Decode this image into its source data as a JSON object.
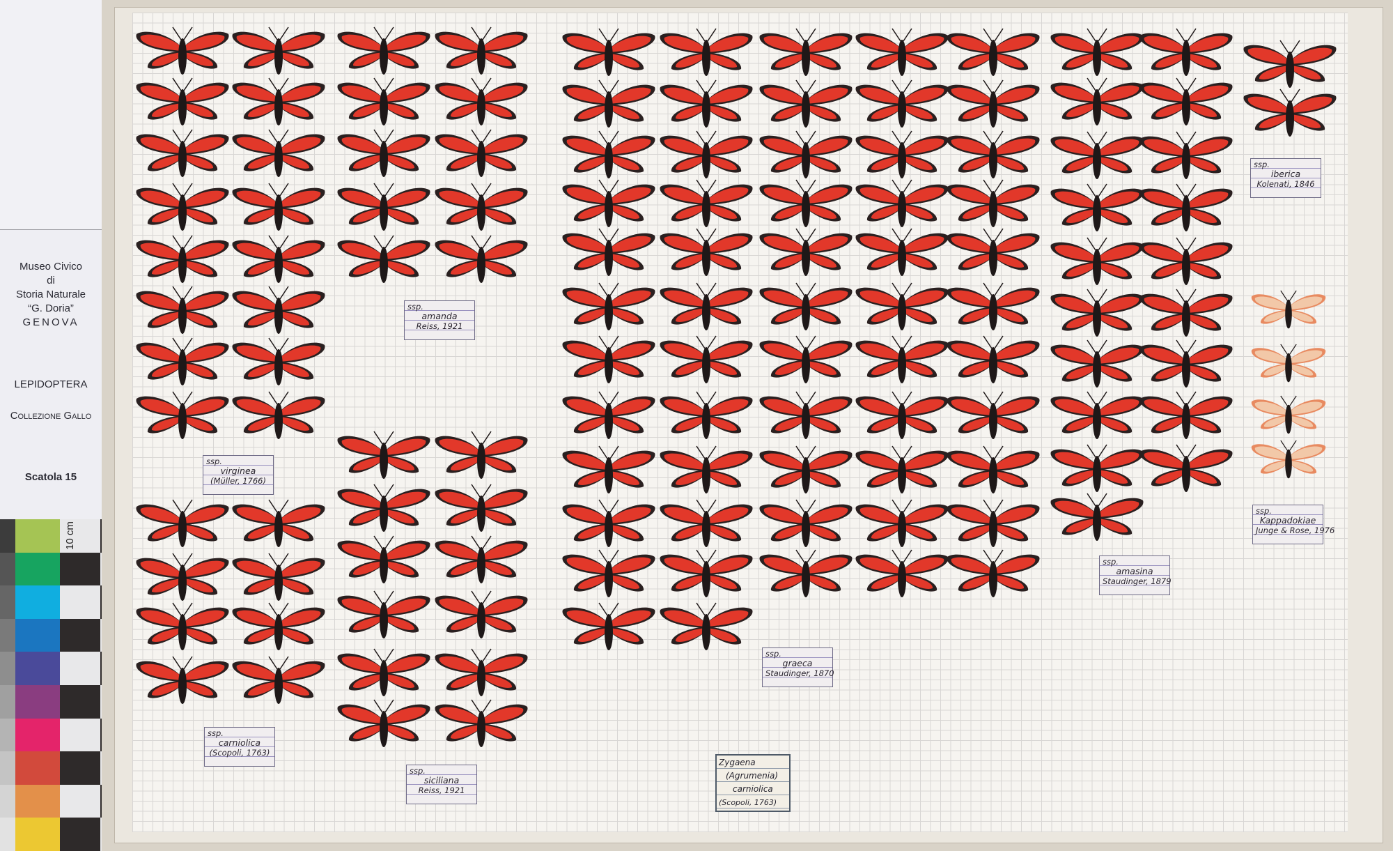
{
  "side_panel": {
    "museum": [
      "Museo Civico",
      "di",
      "Storia Naturale",
      "“G. Doria”",
      "GENOVA"
    ],
    "order": "LEPIDOPTERA",
    "collection": "Collezione Gallo",
    "box": "Scatola 15"
  },
  "color_chart": {
    "scale_label": "10 cm",
    "colors": [
      "#a5c454",
      "#17a460",
      "#10aee0",
      "#1b76c0",
      "#4a4a9a",
      "#8a3d80",
      "#e4246a",
      "#d24a3c",
      "#e3904a",
      "#ecc832"
    ],
    "grays": [
      "#3c3c3c",
      "#555555",
      "#666666",
      "#7a7a7a",
      "#8e8e8e",
      "#a0a0a0",
      "#b4b4b4",
      "#c4c4c4",
      "#d4d4d4",
      "#e2e2e2"
    ]
  },
  "genus_label": [
    "Zygaena",
    "(Agrumenia)",
    "carniolica",
    "(Scopoli, 1763)"
  ],
  "subspecies_labels": [
    {
      "prefix": "ssp.",
      "name": "amanda",
      "author": "Reiss, 1921"
    },
    {
      "prefix": "ssp.",
      "name": "virginea",
      "author": "(Müller, 1766)"
    },
    {
      "prefix": "ssp.",
      "name": "carniolica",
      "author": "(Scopoli, 1763)"
    },
    {
      "prefix": "ssp.",
      "name": "siciliana",
      "author": "Reiss, 1921"
    },
    {
      "prefix": "ssp.",
      "name": "graeca",
      "author": "Staudinger, 1870"
    },
    {
      "prefix": "ssp.",
      "name": "amasina",
      "author": "Staudinger, 1879"
    },
    {
      "prefix": "ssp.",
      "name": "iberica",
      "author": "Kolenati, 1846"
    },
    {
      "prefix": "ssp.",
      "name": "Kappadokiae",
      "author": "Junge & Rose, 1976"
    }
  ],
  "colors": {
    "moth_red": "#e2382a",
    "moth_border": "#2a2020",
    "moth_pale": "#f2c8a8",
    "moth_body": "#1e1818"
  }
}
